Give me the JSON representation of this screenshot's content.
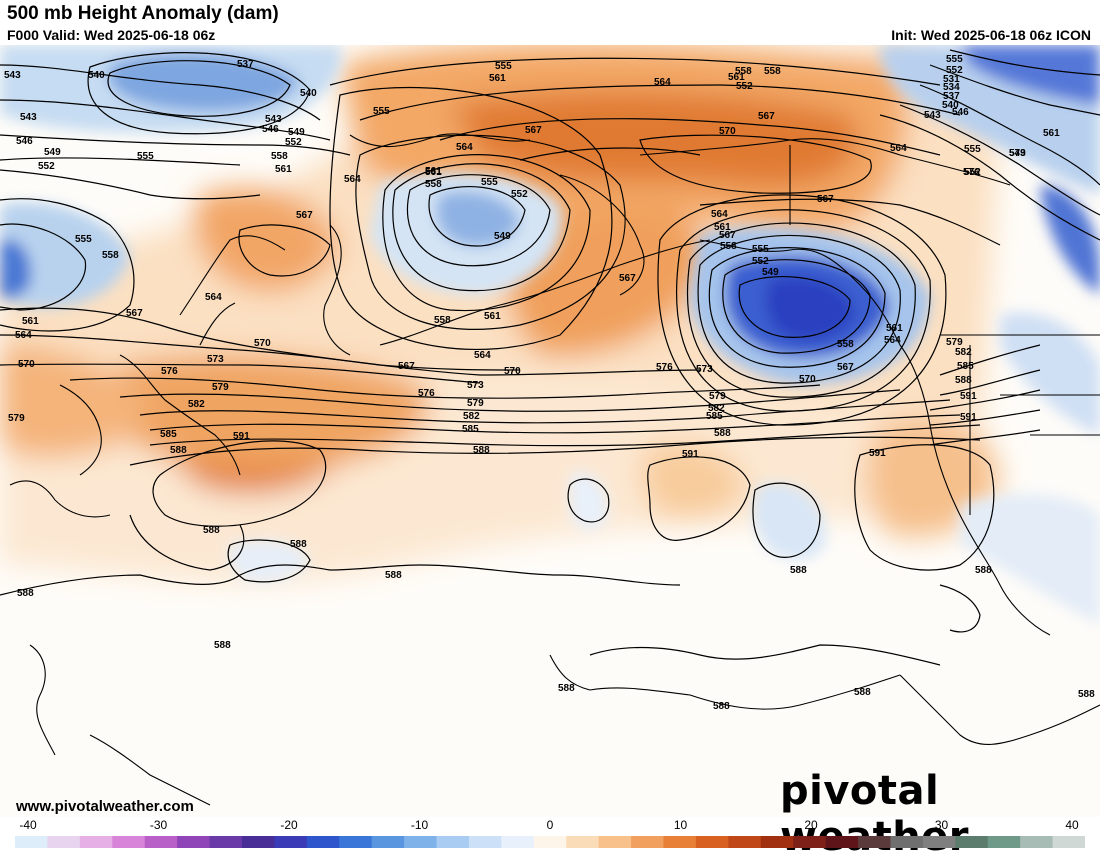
{
  "header": {
    "title": "500 mb Height Anomaly (dam)",
    "valid": "F000 Valid: Wed 2025-06-18 06z",
    "init": "Init: Wed 2025-06-18 06z ICON"
  },
  "footer": {
    "website": "www.pivotalweather.com",
    "brand": "pivotal weather"
  },
  "colorbar": {
    "min": -40,
    "max": 40,
    "ticks": [
      "-40",
      "-30",
      "-20",
      "-10",
      "0",
      "10",
      "20",
      "30",
      "40"
    ],
    "colors": [
      "#ddeefa",
      "#e8d4ee",
      "#e6b0e6",
      "#d884d8",
      "#b860c8",
      "#8f44b8",
      "#6a3aa8",
      "#4a2e98",
      "#3b3bb8",
      "#2f55cc",
      "#3a75d8",
      "#5a95e0",
      "#80b2ea",
      "#a8ccf2",
      "#cce0f8",
      "#e8f0fb",
      "#fdf4ea",
      "#fbdcb8",
      "#f8c08a",
      "#f2a060",
      "#e88038",
      "#d86020",
      "#c04818",
      "#a03010",
      "#7f2018",
      "#5e1418",
      "#5a3a3a",
      "#6f6f6f",
      "#7f7f7f",
      "#5c7c6e",
      "#6f9a8a",
      "#a7bcb4",
      "#cfd8d4"
    ]
  },
  "contour_labels": [
    {
      "id": "543a",
      "text": "543"
    },
    {
      "id": "540a",
      "text": "540"
    },
    {
      "id": "537a",
      "text": "537"
    },
    {
      "id": "540b",
      "text": "540"
    },
    {
      "id": "543b",
      "text": "543"
    },
    {
      "id": "543c",
      "text": "543"
    },
    {
      "id": "546a",
      "text": "546"
    },
    {
      "id": "549a",
      "text": "549"
    },
    {
      "id": "552a",
      "text": "552"
    },
    {
      "id": "546b",
      "text": "546"
    },
    {
      "id": "549b",
      "text": "549"
    },
    {
      "id": "552b",
      "text": "552"
    },
    {
      "id": "555a",
      "text": "555"
    },
    {
      "id": "558a",
      "text": "558"
    },
    {
      "id": "561a",
      "text": "561"
    },
    {
      "id": "555b",
      "text": "555"
    },
    {
      "id": "555c",
      "text": "555"
    },
    {
      "id": "558b",
      "text": "558"
    },
    {
      "id": "561b",
      "text": "561"
    },
    {
      "id": "564a",
      "text": "564"
    },
    {
      "id": "567a",
      "text": "567"
    },
    {
      "id": "564b",
      "text": "564"
    },
    {
      "id": "567b",
      "text": "567"
    },
    {
      "id": "564c",
      "text": "564"
    },
    {
      "id": "561c",
      "text": "561"
    },
    {
      "id": "564d",
      "text": "564"
    },
    {
      "id": "570a",
      "text": "570"
    },
    {
      "id": "573a",
      "text": "573"
    },
    {
      "id": "576a",
      "text": "576"
    },
    {
      "id": "579a",
      "text": "579"
    },
    {
      "id": "582a",
      "text": "582"
    },
    {
      "id": "585a",
      "text": "585"
    },
    {
      "id": "588a",
      "text": "588"
    },
    {
      "id": "591a",
      "text": "591"
    },
    {
      "id": "579b",
      "text": "579"
    },
    {
      "id": "570b",
      "text": "570"
    },
    {
      "id": "567c",
      "text": "567"
    },
    {
      "id": "576b",
      "text": "576"
    },
    {
      "id": "573b",
      "text": "573"
    },
    {
      "id": "579c",
      "text": "579"
    },
    {
      "id": "582b",
      "text": "582"
    },
    {
      "id": "585b",
      "text": "585"
    },
    {
      "id": "588b",
      "text": "588"
    },
    {
      "id": "561d",
      "text": "561"
    },
    {
      "id": "558c",
      "text": "558"
    },
    {
      "id": "555d",
      "text": "555"
    },
    {
      "id": "552c",
      "text": "552"
    },
    {
      "id": "549c",
      "text": "549"
    },
    {
      "id": "558d",
      "text": "558"
    },
    {
      "id": "561e",
      "text": "561"
    },
    {
      "id": "564e",
      "text": "564"
    },
    {
      "id": "570c",
      "text": "570"
    },
    {
      "id": "567d",
      "text": "567"
    },
    {
      "id": "576c",
      "text": "576"
    },
    {
      "id": "573c",
      "text": "573"
    },
    {
      "id": "570d",
      "text": "570"
    },
    {
      "id": "579d",
      "text": "579"
    },
    {
      "id": "582c",
      "text": "582"
    },
    {
      "id": "585c",
      "text": "585"
    },
    {
      "id": "588c",
      "text": "588"
    },
    {
      "id": "567e",
      "text": "567"
    },
    {
      "id": "564f",
      "text": "564"
    },
    {
      "id": "561f",
      "text": "561"
    },
    {
      "id": "558e",
      "text": "558"
    },
    {
      "id": "555e",
      "text": "555"
    },
    {
      "id": "552d",
      "text": "552"
    },
    {
      "id": "549d",
      "text": "549"
    },
    {
      "id": "558f",
      "text": "558"
    },
    {
      "id": "564g",
      "text": "564"
    },
    {
      "id": "561g",
      "text": "561"
    },
    {
      "id": "567f",
      "text": "567"
    },
    {
      "id": "567g",
      "text": "567"
    },
    {
      "id": "564h",
      "text": "564"
    },
    {
      "id": "567h",
      "text": "567"
    },
    {
      "id": "570e",
      "text": "570"
    },
    {
      "id": "567i",
      "text": "567"
    },
    {
      "id": "564i",
      "text": "564"
    },
    {
      "id": "561h",
      "text": "561"
    },
    {
      "id": "558g",
      "text": "558"
    },
    {
      "id": "555f",
      "text": "555"
    },
    {
      "id": "552e",
      "text": "552"
    },
    {
      "id": "558h",
      "text": "558"
    },
    {
      "id": "561i",
      "text": "561"
    },
    {
      "id": "555g",
      "text": "555"
    },
    {
      "id": "552f",
      "text": "552"
    },
    {
      "id": "549e",
      "text": "549"
    },
    {
      "id": "546c",
      "text": "546"
    },
    {
      "id": "543d",
      "text": "543"
    },
    {
      "id": "540c",
      "text": "540"
    },
    {
      "id": "537b",
      "text": "537"
    },
    {
      "id": "534a",
      "text": "534"
    },
    {
      "id": "531a",
      "text": "531"
    },
    {
      "id": "552g",
      "text": "552"
    },
    {
      "id": "555h",
      "text": "555"
    },
    {
      "id": "561j",
      "text": "561"
    },
    {
      "id": "573d",
      "text": "573"
    },
    {
      "id": "576d",
      "text": "576"
    },
    {
      "id": "579e",
      "text": "579"
    },
    {
      "id": "582d",
      "text": "582"
    },
    {
      "id": "585d",
      "text": "585"
    },
    {
      "id": "588d",
      "text": "588"
    },
    {
      "id": "591b",
      "text": "591"
    },
    {
      "id": "591c",
      "text": "591"
    },
    {
      "id": "591d",
      "text": "591"
    },
    {
      "id": "591e",
      "text": "591"
    },
    {
      "id": "588e",
      "text": "588"
    },
    {
      "id": "588f",
      "text": "588"
    },
    {
      "id": "588g",
      "text": "588"
    },
    {
      "id": "588h",
      "text": "588"
    },
    {
      "id": "588i",
      "text": "588"
    },
    {
      "id": "588j",
      "text": "588"
    },
    {
      "id": "588k",
      "text": "588"
    },
    {
      "id": "588l",
      "text": "588"
    },
    {
      "id": "588m",
      "text": "588"
    },
    {
      "id": "588n",
      "text": "588"
    },
    {
      "id": "588o",
      "text": "588"
    }
  ]
}
